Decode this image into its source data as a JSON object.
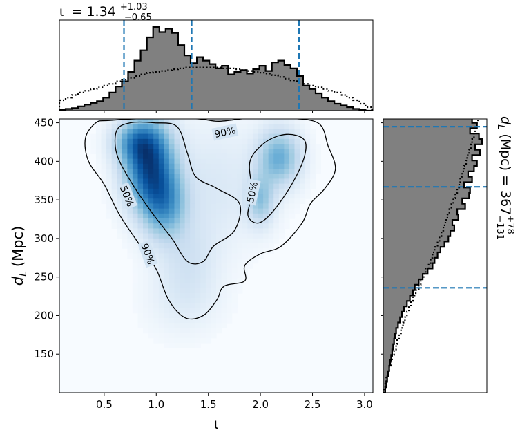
{
  "chart_data": {
    "type": "corner",
    "x_parameter": "ι",
    "y_parameter": "d_L (Mpc)",
    "xlabel": "ι",
    "ylabel_main": "d",
    "ylabel_sub": "L",
    "ylabel_unit": "(Mpc)",
    "xlim": [
      0.07,
      3.08
    ],
    "ylim": [
      100,
      455
    ],
    "x_ticks": [
      0.5,
      1.0,
      1.5,
      2.0,
      2.5,
      3.0
    ],
    "x_tick_labels": [
      "0.5",
      "1.0",
      "1.5",
      "2.0",
      "2.5",
      "3.0"
    ],
    "y_ticks": [
      150,
      200,
      250,
      300,
      350,
      400,
      450
    ],
    "y_tick_labels": [
      "150",
      "200",
      "250",
      "300",
      "350",
      "400",
      "450"
    ],
    "top_annotation": {
      "symbol": "ι",
      "equals": "= ",
      "median": "1.34",
      "upper": "+1.03",
      "lower": "−0.65"
    },
    "right_annotation": {
      "symbol": "d",
      "sub": "L",
      "unit": "(Mpc) = ",
      "median": "367",
      "upper": "+78",
      "lower": "−131"
    },
    "iota_quantiles": [
      0.69,
      1.34,
      2.37
    ],
    "dl_quantiles": [
      236,
      367,
      445
    ],
    "contour_labels": [
      "90%",
      "50%",
      "50%",
      "90%"
    ],
    "colormap": "Blues",
    "quantile_color": "#1f77b4",
    "hist_fill_color": "#808080",
    "density_blobs": [
      {
        "x": 0.93,
        "y": 395,
        "sx": 0.16,
        "sy": 38,
        "w": 1.0
      },
      {
        "x": 1.08,
        "y": 345,
        "sx": 0.14,
        "sy": 30,
        "w": 0.55
      },
      {
        "x": 0.8,
        "y": 425,
        "sx": 0.15,
        "sy": 18,
        "w": 0.45
      },
      {
        "x": 2.18,
        "y": 405,
        "sx": 0.14,
        "sy": 25,
        "w": 0.52
      },
      {
        "x": 2.0,
        "y": 350,
        "sx": 0.09,
        "sy": 22,
        "w": 0.38
      },
      {
        "x": 1.55,
        "y": 370,
        "sx": 0.35,
        "sy": 55,
        "w": 0.12
      },
      {
        "x": 1.3,
        "y": 270,
        "sx": 0.2,
        "sy": 40,
        "w": 0.15
      },
      {
        "x": 1.25,
        "y": 215,
        "sx": 0.25,
        "sy": 30,
        "w": 0.06
      }
    ],
    "contour_90": [
      [
        0.55,
        453
      ],
      [
        1.0,
        456
      ],
      [
        1.4,
        455
      ],
      [
        1.6,
        452
      ],
      [
        1.9,
        456
      ],
      [
        2.2,
        456
      ],
      [
        2.55,
        450
      ],
      [
        2.65,
        420
      ],
      [
        2.72,
        390
      ],
      [
        2.62,
        365
      ],
      [
        2.48,
        345
      ],
      [
        2.4,
        320
      ],
      [
        2.2,
        290
      ],
      [
        2.0,
        280
      ],
      [
        1.85,
        265
      ],
      [
        1.85,
        245
      ],
      [
        1.65,
        238
      ],
      [
        1.58,
        220
      ],
      [
        1.45,
        200
      ],
      [
        1.28,
        197
      ],
      [
        1.12,
        220
      ],
      [
        1.0,
        260
      ],
      [
        0.85,
        290
      ],
      [
        0.65,
        330
      ],
      [
        0.5,
        370
      ],
      [
        0.35,
        400
      ],
      [
        0.32,
        430
      ],
      [
        0.42,
        450
      ],
      [
        0.55,
        453
      ]
    ],
    "contour_50_left": [
      [
        0.62,
        440
      ],
      [
        0.75,
        450
      ],
      [
        0.98,
        450
      ],
      [
        1.2,
        445
      ],
      [
        1.3,
        410
      ],
      [
        1.38,
        380
      ],
      [
        1.58,
        365
      ],
      [
        1.8,
        345
      ],
      [
        1.75,
        310
      ],
      [
        1.55,
        290
      ],
      [
        1.45,
        270
      ],
      [
        1.3,
        270
      ],
      [
        1.15,
        300
      ],
      [
        0.95,
        335
      ],
      [
        0.75,
        375
      ],
      [
        0.62,
        410
      ],
      [
        0.62,
        440
      ]
    ],
    "contour_50_right": [
      [
        1.9,
        400
      ],
      [
        2.05,
        425
      ],
      [
        2.25,
        435
      ],
      [
        2.42,
        428
      ],
      [
        2.42,
        405
      ],
      [
        2.3,
        370
      ],
      [
        2.12,
        335
      ],
      [
        1.98,
        320
      ],
      [
        1.88,
        330
      ],
      [
        1.92,
        360
      ],
      [
        1.9,
        400
      ]
    ],
    "iota_hist": {
      "edges": [
        0.07,
        0.13,
        0.19,
        0.25,
        0.31,
        0.37,
        0.43,
        0.49,
        0.55,
        0.61,
        0.67,
        0.73,
        0.79,
        0.85,
        0.91,
        0.97,
        1.03,
        1.09,
        1.15,
        1.21,
        1.27,
        1.33,
        1.39,
        1.45,
        1.51,
        1.57,
        1.63,
        1.69,
        1.75,
        1.81,
        1.87,
        1.93,
        1.99,
        2.05,
        2.11,
        2.17,
        2.23,
        2.29,
        2.35,
        2.41,
        2.47,
        2.53,
        2.59,
        2.65,
        2.71,
        2.77,
        2.83,
        2.89,
        2.95,
        3.01,
        3.07
      ],
      "posterior": [
        0.01,
        0.02,
        0.03,
        0.05,
        0.07,
        0.09,
        0.11,
        0.15,
        0.21,
        0.28,
        0.34,
        0.45,
        0.58,
        0.7,
        0.85,
        0.97,
        0.91,
        0.95,
        0.9,
        0.76,
        0.64,
        0.55,
        0.62,
        0.58,
        0.54,
        0.49,
        0.52,
        0.42,
        0.45,
        0.47,
        0.43,
        0.48,
        0.52,
        0.46,
        0.56,
        0.58,
        0.53,
        0.49,
        0.4,
        0.29,
        0.25,
        0.2,
        0.15,
        0.11,
        0.08,
        0.06,
        0.04,
        0.02,
        0.01,
        0.0
      ],
      "prior": [
        0.12,
        0.15,
        0.18,
        0.21,
        0.23,
        0.25,
        0.27,
        0.29,
        0.31,
        0.34,
        0.36,
        0.38,
        0.4,
        0.42,
        0.44,
        0.45,
        0.46,
        0.47,
        0.48,
        0.49,
        0.5,
        0.5,
        0.5,
        0.5,
        0.5,
        0.5,
        0.49,
        0.49,
        0.48,
        0.47,
        0.46,
        0.45,
        0.44,
        0.43,
        0.41,
        0.39,
        0.37,
        0.35,
        0.33,
        0.31,
        0.29,
        0.27,
        0.25,
        0.23,
        0.21,
        0.18,
        0.15,
        0.12,
        0.08,
        0.04
      ],
      "ymax": 1.05
    },
    "dl_hist": {
      "edges": [
        100,
        107,
        114,
        121,
        128,
        135,
        142,
        149,
        156,
        163,
        170,
        177,
        184,
        191,
        198,
        205,
        212,
        219,
        226,
        233,
        240,
        247,
        254,
        261,
        268,
        275,
        282,
        289,
        296,
        303,
        310,
        317,
        324,
        331,
        338,
        345,
        352,
        359,
        366,
        373,
        380,
        387,
        394,
        401,
        408,
        415,
        422,
        429,
        436,
        443,
        450,
        457
      ],
      "posterior": [
        0.02,
        0.03,
        0.04,
        0.05,
        0.06,
        0.07,
        0.08,
        0.09,
        0.1,
        0.11,
        0.12,
        0.13,
        0.15,
        0.17,
        0.19,
        0.21,
        0.24,
        0.27,
        0.3,
        0.32,
        0.36,
        0.4,
        0.45,
        0.5,
        0.52,
        0.55,
        0.58,
        0.62,
        0.66,
        0.68,
        0.72,
        0.7,
        0.76,
        0.75,
        0.83,
        0.8,
        0.87,
        0.88,
        0.82,
        0.9,
        0.86,
        0.92,
        0.95,
        0.9,
        0.98,
        0.93,
        1.0,
        0.97,
        0.88,
        0.95,
        0.9,
        0.0
      ],
      "prior": [
        0.01,
        0.02,
        0.03,
        0.05,
        0.06,
        0.08,
        0.09,
        0.11,
        0.13,
        0.14,
        0.16,
        0.18,
        0.2,
        0.22,
        0.24,
        0.26,
        0.28,
        0.3,
        0.33,
        0.36,
        0.38,
        0.41,
        0.43,
        0.46,
        0.48,
        0.5,
        0.52,
        0.55,
        0.57,
        0.59,
        0.61,
        0.63,
        0.65,
        0.67,
        0.69,
        0.71,
        0.73,
        0.75,
        0.77,
        0.78,
        0.8,
        0.82,
        0.84,
        0.85,
        0.87,
        0.89,
        0.9,
        0.92,
        0.93,
        0.95,
        0.96,
        0.0
      ],
      "xmax": 1.05
    }
  }
}
